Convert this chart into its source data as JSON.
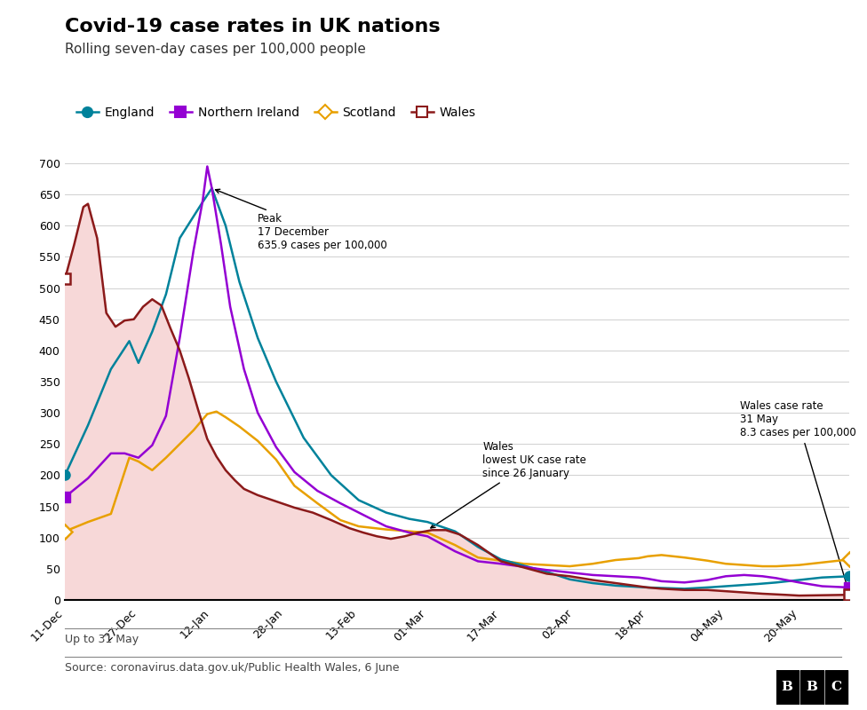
{
  "title": "Covid-19 case rates in UK nations",
  "subtitle": "Rolling seven-day cases per 100,000 people",
  "source_text": "Source: coronavirus.data.gov.uk/Public Health Wales, 6 June",
  "footnote": "Up to 31 May",
  "ylim": [
    0,
    700
  ],
  "yticks": [
    0,
    50,
    100,
    150,
    200,
    250,
    300,
    350,
    400,
    450,
    500,
    550,
    600,
    650,
    700
  ],
  "colors": {
    "england": "#00829b",
    "northern_ireland": "#9400d3",
    "scotland": "#e8a000",
    "wales": "#8b1a1a",
    "wales_fill": "#f7d8d8"
  },
  "x_tick_labels": [
    "11-Dec",
    "27-Dec",
    "12-Jan",
    "28-Jan",
    "13-Feb",
    "01-Mar",
    "17-Mar",
    "02-Apr",
    "18-Apr",
    "04-May",
    "20-May"
  ],
  "x_tick_positions": [
    0,
    16,
    32,
    48,
    64,
    79,
    95,
    111,
    127,
    144,
    160
  ]
}
